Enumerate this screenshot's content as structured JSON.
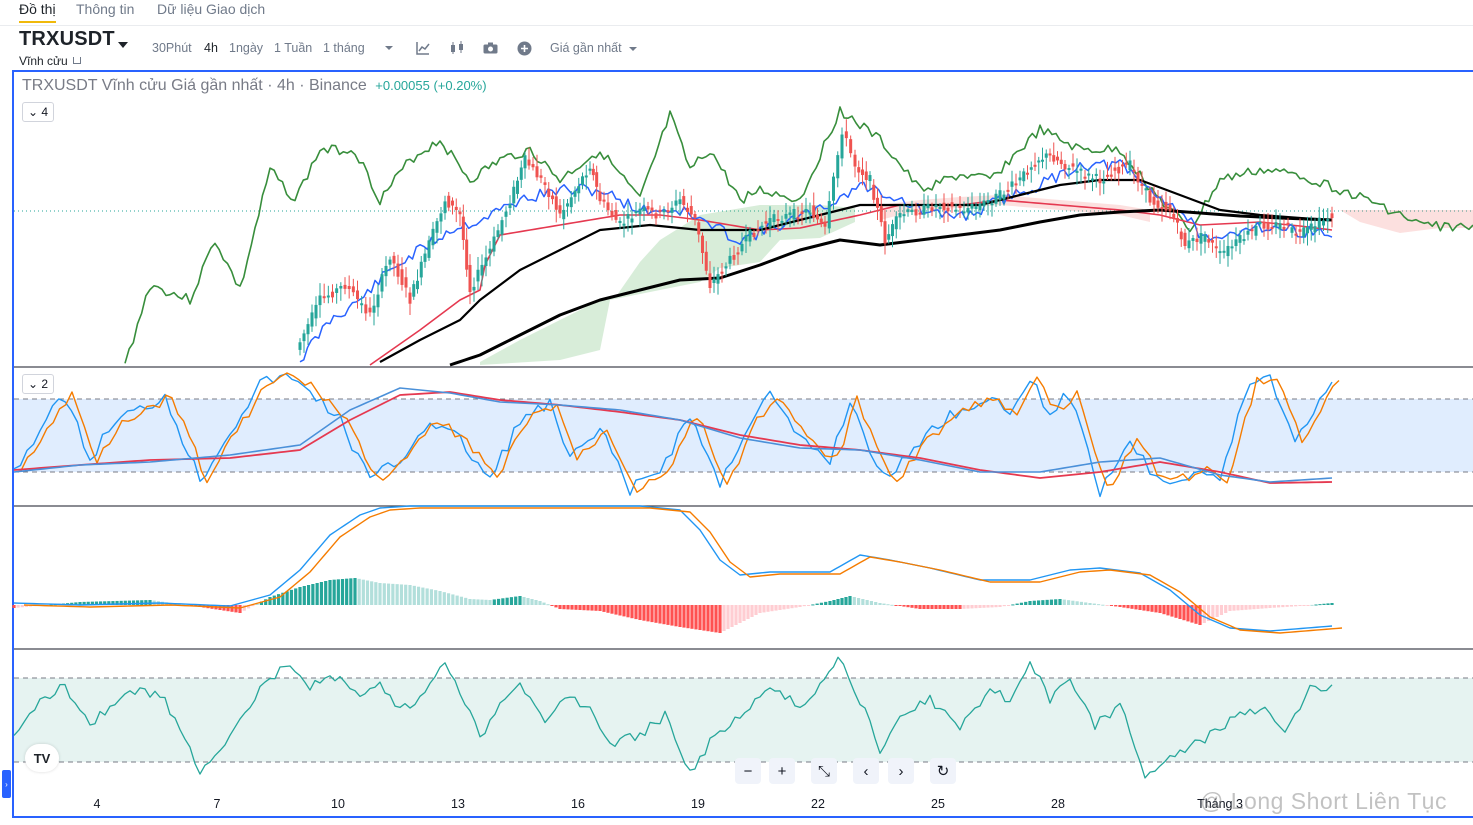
{
  "tabs": [
    {
      "label": "Đồ thị",
      "active": true
    },
    {
      "label": "Thông tin",
      "active": false
    },
    {
      "label": "Dữ liệu Giao dịch",
      "active": false
    }
  ],
  "symbol": {
    "name": "TRXUSDT",
    "subtitle": "Vĩnh cửu"
  },
  "timeframes": [
    {
      "label": "30Phút",
      "active": false
    },
    {
      "label": "4h",
      "active": true
    },
    {
      "label": "1ngày",
      "active": false
    },
    {
      "label": "1 Tuần",
      "active": false
    },
    {
      "label": "1 tháng",
      "active": false
    }
  ],
  "toolbar": {
    "icons": [
      "chevron-down-icon",
      "indicator-icon",
      "chart-style-icon",
      "camera-icon",
      "add-icon"
    ],
    "price_type": "Giá gần nhất"
  },
  "legend": {
    "title": "TRXUSDT Vĩnh cửu Giá gần nhất · 4h · Binance",
    "change": "+0.00055 (+0.20%)"
  },
  "panes": {
    "main_collapse": "4",
    "stoch_collapse": "2"
  },
  "x_axis": [
    "4",
    "7",
    "10",
    "13",
    "16",
    "19",
    "22",
    "25",
    "28",
    "Tháng 3"
  ],
  "nav": [
    "−",
    "+",
    "⤡",
    "‹",
    "›",
    "↻"
  ],
  "watermark": "@ Long Short Liên Tục",
  "colors": {
    "accent": "#2962ff",
    "up": "#26a69a",
    "down": "#ef5350",
    "tab_underline": "#f0b90b",
    "ichimoku_green": "#388e3c",
    "ichimoku_red": "#e53950",
    "ma_black": "#000000",
    "ma_blue": "#2962ff"
  },
  "chart_data": {
    "type": "candlestick",
    "title": "TRXUSDT Vĩnh cửu Giá gần nhất · 4h · Binance",
    "x_ticks": [
      "4",
      "7",
      "10",
      "13",
      "16",
      "19",
      "22",
      "25",
      "28",
      "Tháng 3"
    ],
    "indicators": [
      "Ichimoku Cloud",
      "Moving Average",
      "Stochastic RSI",
      "MACD",
      "RSI"
    ],
    "last_change": "+0.00055 (+0.20%)"
  }
}
